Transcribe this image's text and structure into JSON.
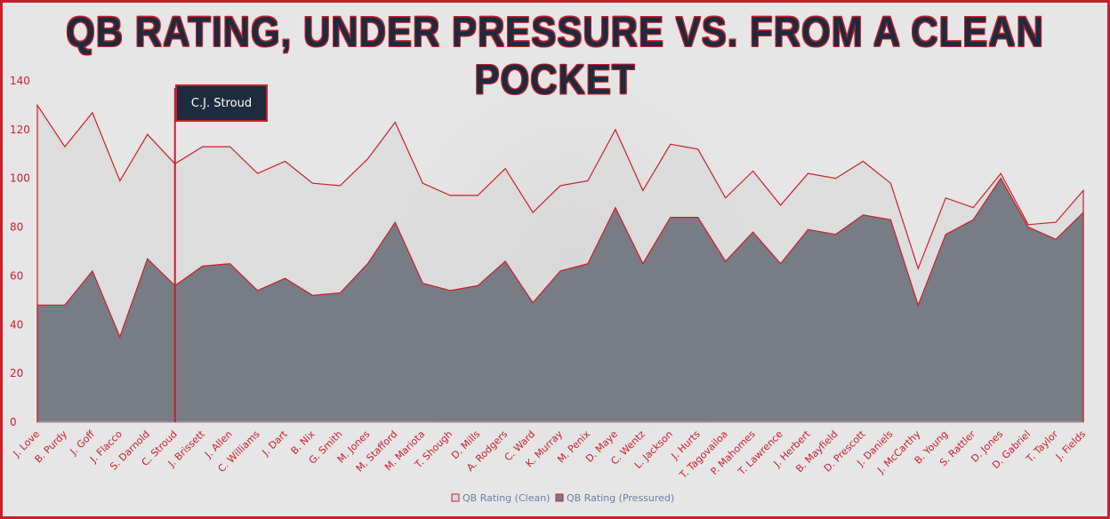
{
  "colors": {
    "accent": "#c8202a",
    "clean_fill": "#d9d9d9",
    "pressured_fill": "#777c85",
    "navy": "#1d2b3e"
  },
  "callout": {
    "label": "C.J. Stroud",
    "highlight_category": "C. Stroud"
  },
  "chart_data": {
    "type": "area",
    "title": "QB RATING, UNDER PRESSURE VS. FROM A CLEAN POCKET",
    "xlabel": "",
    "ylabel": "",
    "ylim": [
      0,
      140
    ],
    "yticks": [
      0,
      20,
      40,
      60,
      80,
      100,
      120,
      140
    ],
    "grid": false,
    "legend_position": "bottom-center",
    "categories": [
      "J. Love",
      "B. Purdy",
      "J. Goff",
      "J. Flacco",
      "S. Darnold",
      "C. Stroud",
      "J. Brissett",
      "J. Allen",
      "C. Williams",
      "J. Dart",
      "B. Nix",
      "G. Smith",
      "M. Jones",
      "M. Stafford",
      "M. Mariota",
      "T. Shough",
      "D. Mills",
      "A. Rodgers",
      "C. Ward",
      "K. Murray",
      "M. Penix",
      "D. Maye",
      "C. Wentz",
      "L. Jackson",
      "J. Hurts",
      "T. Tagovailoa",
      "P. Mahomes",
      "T. Lawrence",
      "J. Herbert",
      "B. Mayfield",
      "D. Prescott",
      "J. Daniels",
      "J. McCarthy",
      "B. Young",
      "S. Rattler",
      "D. Jones",
      "D. Gabriel",
      "T. Taylor",
      "J. Fields"
    ],
    "series": [
      {
        "name": "QB Rating (Clean)",
        "values": [
          130,
          113,
          127,
          99,
          118,
          106,
          113,
          113,
          102,
          107,
          98,
          97,
          108,
          123,
          98,
          93,
          93,
          104,
          86,
          97,
          99,
          120,
          95,
          114,
          112,
          92,
          103,
          89,
          102,
          100,
          107,
          98,
          63,
          92,
          88,
          102,
          81,
          82,
          95
        ]
      },
      {
        "name": "QB Rating (Pressured)",
        "values": [
          48,
          48,
          62,
          35,
          67,
          56,
          64,
          65,
          54,
          59,
          52,
          53,
          65,
          82,
          57,
          54,
          56,
          66,
          49,
          62,
          65,
          88,
          65,
          84,
          84,
          66,
          78,
          65,
          79,
          77,
          85,
          83,
          48,
          77,
          83,
          100,
          80,
          75,
          86
        ]
      }
    ]
  }
}
